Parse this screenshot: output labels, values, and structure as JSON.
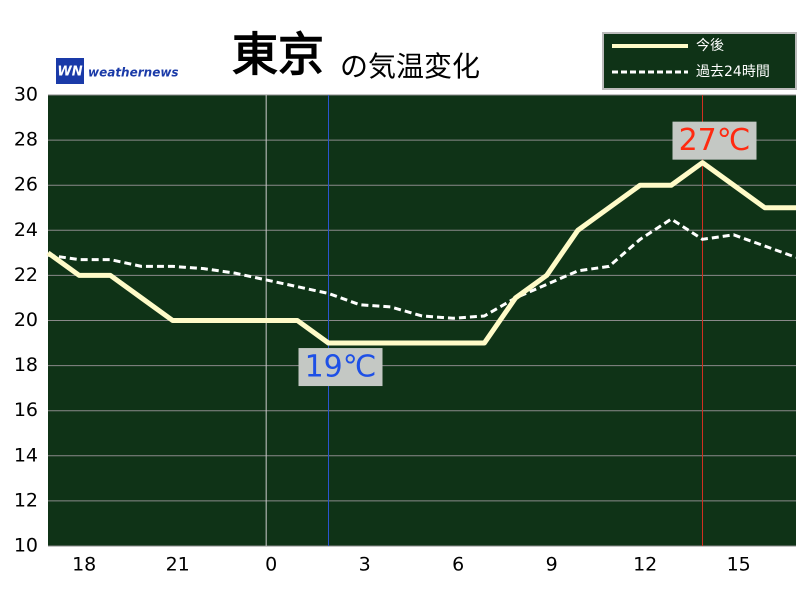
{
  "chart_data": {
    "type": "line",
    "title": "東京",
    "subtitle": "の気温変化",
    "brand": "weathernews",
    "brand_mark": "WN",
    "x": [
      17,
      18,
      19,
      20,
      21,
      22,
      23,
      24,
      25,
      26,
      27,
      28,
      29,
      30,
      31,
      32,
      33,
      34,
      35,
      36,
      37,
      38,
      39,
      40,
      41
    ],
    "series": [
      {
        "name": "今後",
        "color": "#fffbc8",
        "dash": false,
        "values": [
          23,
          22,
          22,
          21,
          20,
          20,
          20,
          20,
          20,
          19,
          19,
          19,
          19,
          19,
          19,
          21,
          22,
          24,
          25,
          26,
          26,
          27,
          26,
          25,
          25
        ]
      },
      {
        "name": "過去24時間",
        "color": "#ffffff",
        "dash": true,
        "values": [
          22.9,
          22.7,
          22.7,
          22.4,
          22.4,
          22.3,
          22.1,
          21.8,
          21.5,
          21.2,
          20.7,
          20.6,
          20.2,
          20.1,
          20.2,
          21.0,
          21.6,
          22.2,
          22.4,
          23.6,
          24.5,
          23.6,
          23.8,
          23.3,
          22.8
        ]
      }
    ],
    "xlim": [
      17,
      41
    ],
    "ylim": [
      10,
      30
    ],
    "xticks": [
      18,
      21,
      {
        "value": 24,
        "label": "0"
      },
      {
        "value": 27,
        "label": "3"
      },
      {
        "value": 30,
        "label": "6"
      },
      {
        "value": 33,
        "label": "9"
      },
      {
        "value": 36,
        "label": "12"
      },
      {
        "value": 39,
        "label": "15"
      }
    ],
    "yticks": [
      10,
      12,
      14,
      16,
      18,
      20,
      22,
      24,
      26,
      28,
      30
    ],
    "grid": true,
    "legend": "top-right",
    "annotations": [
      {
        "text": "19℃",
        "x": 26,
        "y": 19,
        "color": "#1e50e6",
        "line_color": "#2a55d0"
      },
      {
        "text": "27℃",
        "x": 38,
        "y": 27,
        "color": "#ff2a10",
        "line_color": "#d03020"
      }
    ]
  }
}
